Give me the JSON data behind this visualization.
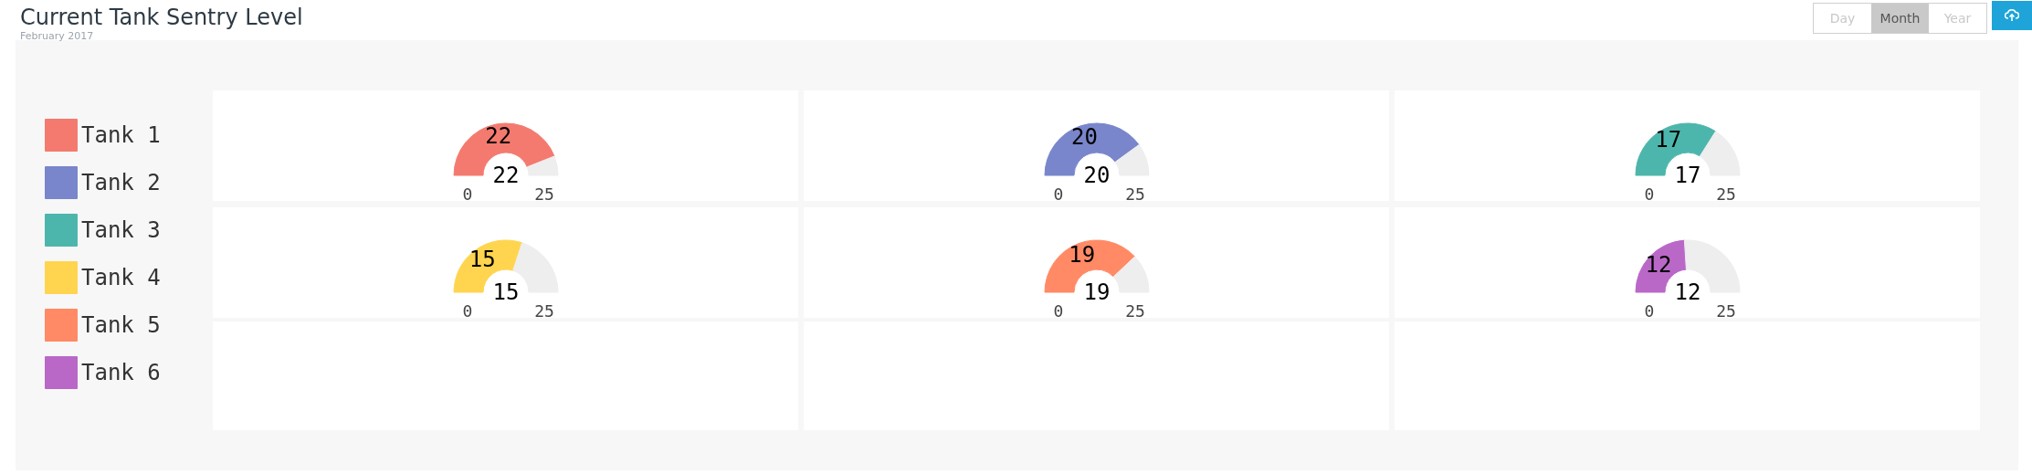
{
  "chart_data": {
    "type": "donut",
    "title": "Current Tank Sentry Level",
    "subtitle": "February 2017",
    "categories": [
      null,
      null
    ],
    "series": [
      {
        "name": "Tank 1",
        "colors": [
          "#f47a6f",
          "#eeeeee"
        ],
        "values": [
          22,
          3
        ],
        "value_labels": [
          "22",
          null
        ]
      },
      {
        "name": "Tank 2",
        "colors": [
          "#7986cb",
          "#eeeeee"
        ],
        "values": [
          20,
          5
        ],
        "value_labels": [
          "20",
          null
        ]
      },
      {
        "name": "Tank 3",
        "colors": [
          "#4db6ac",
          "#eeeeee"
        ],
        "values": [
          17,
          8
        ],
        "value_labels": [
          "17",
          null
        ]
      },
      {
        "name": "Tank 4",
        "colors": [
          "#ffd54f",
          "#eeeeee"
        ],
        "values": [
          15,
          10
        ],
        "value_labels": [
          "15",
          null
        ]
      },
      {
        "name": "Tank 5",
        "colors": [
          "#ff8a65",
          "#eeeeee"
        ],
        "values": [
          19,
          6
        ],
        "value_labels": [
          "19",
          null
        ]
      },
      {
        "name": "Tank 6",
        "colors": [
          "#ba68c8",
          "#eeeeee"
        ],
        "values": [
          12,
          13
        ],
        "value_labels": [
          "12",
          null
        ]
      }
    ],
    "legend": "left",
    "annotations": [
      "Day",
      "Month",
      "Year",
      "0",
      "25"
    ]
  }
}
